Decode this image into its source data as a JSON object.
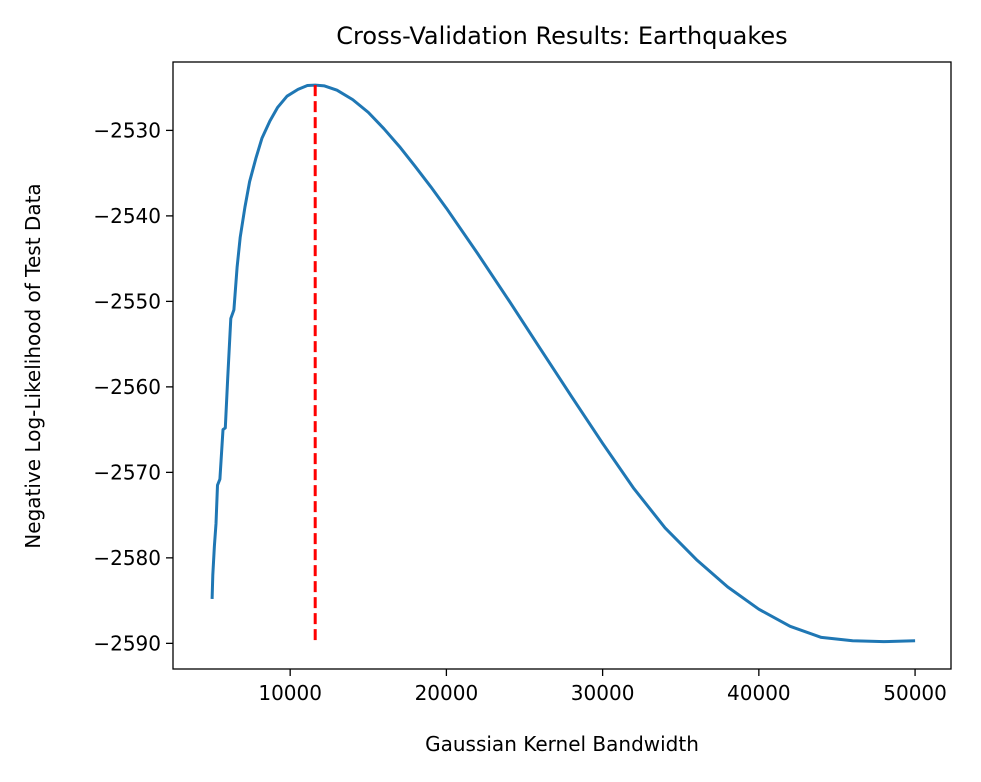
{
  "chart_data": {
    "type": "line",
    "title": "Cross-Validation Results: Earthquakes",
    "xlabel": "Gaussian Kernel Bandwidth",
    "ylabel": "Negative Log-Likelihood of Test Data",
    "xlim": [
      2500,
      52300
    ],
    "ylim": [
      -2593.0,
      -2522.0
    ],
    "x_ticks": [
      10000,
      20000,
      30000,
      40000,
      50000
    ],
    "x_tick_labels": [
      "10000",
      "20000",
      "30000",
      "40000",
      "50000"
    ],
    "y_ticks": [
      -2530,
      -2540,
      -2550,
      -2560,
      -2570,
      -2580,
      -2590
    ],
    "y_tick_labels": [
      "−2530",
      "−2540",
      "−2550",
      "−2560",
      "−2570",
      "−2580",
      "−2590"
    ],
    "grid": false,
    "series": [
      {
        "color": "#1f77b4",
        "style": "solid",
        "x": [
          5000,
          5050,
          5150,
          5250,
          5350,
          5500,
          5700,
          5850,
          6000,
          6200,
          6400,
          6600,
          6800,
          7100,
          7400,
          7800,
          8200,
          8700,
          9200,
          9800,
          10500,
          11100,
          11600,
          12200,
          13000,
          14000,
          15000,
          16000,
          17000,
          18000,
          19000,
          20000,
          22000,
          24000,
          26000,
          28000,
          30000,
          32000,
          34000,
          36000,
          38000,
          40000,
          42000,
          44000,
          46000,
          48000,
          50000
        ],
        "y": [
          -2584.8,
          -2582.0,
          -2578.6,
          -2576.0,
          -2571.5,
          -2570.8,
          -2565.0,
          -2564.8,
          -2559.0,
          -2552.0,
          -2551.0,
          -2546.0,
          -2542.5,
          -2539.0,
          -2536.0,
          -2533.3,
          -2530.9,
          -2528.9,
          -2527.3,
          -2526.0,
          -2525.2,
          -2524.75,
          -2524.7,
          -2524.8,
          -2525.3,
          -2526.4,
          -2527.9,
          -2529.8,
          -2531.9,
          -2534.2,
          -2536.6,
          -2539.1,
          -2544.4,
          -2549.9,
          -2555.5,
          -2561.1,
          -2566.6,
          -2571.9,
          -2576.5,
          -2580.2,
          -2583.4,
          -2586.0,
          -2588.0,
          -2589.3,
          -2589.7,
          -2589.8,
          -2589.7
        ]
      },
      {
        "color": "#ff0000",
        "style": "dashed",
        "x": [
          11600,
          11600
        ],
        "y": [
          -2524.7,
          -2590.0
        ]
      }
    ]
  }
}
